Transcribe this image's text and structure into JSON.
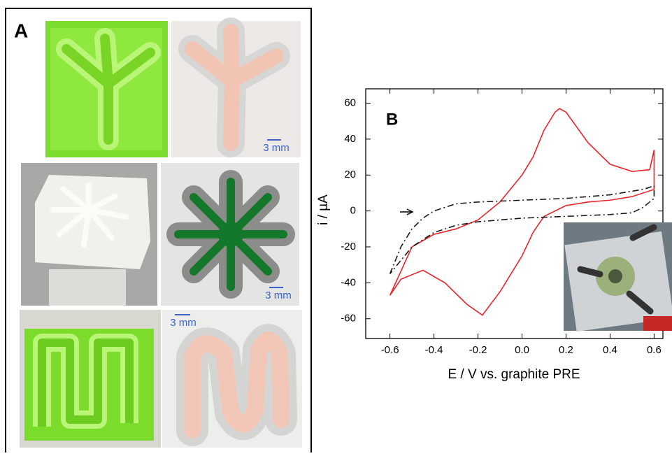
{
  "panel_a": {
    "label": "A",
    "scale_bars": [
      "3 mm",
      "3 mm",
      "3 mm"
    ]
  },
  "chart_data": {
    "type": "line",
    "title": "B",
    "xlabel": "E / V vs. graphite PRE",
    "ylabel": "i / µA",
    "xlim": [
      -0.71,
      0.64
    ],
    "ylim": [
      -71,
      68
    ],
    "xticks": [
      -0.6,
      -0.4,
      -0.2,
      {
        "value": 0,
        "label": "0.0"
      },
      0.2,
      0.4,
      0.6
    ],
    "yticks": [
      -60,
      -40,
      -20,
      0,
      20,
      40,
      60
    ],
    "series": [
      {
        "color": "#e8262b",
        "line_style": "solid",
        "x": [
          -0.6,
          -0.5,
          -0.4,
          -0.3,
          -0.2,
          -0.1,
          0,
          0.05,
          0.1,
          0.15,
          0.17,
          0.2,
          0.3,
          0.4,
          0.5,
          0.58,
          0.6,
          0.6,
          0.5,
          0.4,
          0.3,
          0.2,
          0.1,
          0.05,
          0,
          -0.1,
          -0.18,
          -0.25,
          -0.35,
          -0.45,
          -0.55,
          -0.6
        ],
        "values": [
          -47,
          -20,
          -13,
          -10,
          -5,
          5,
          20,
          30,
          45,
          55,
          57,
          55,
          38,
          26,
          22,
          23,
          34,
          12,
          8,
          6,
          5,
          3,
          -3,
          -12,
          -25,
          -45,
          -58,
          -52,
          -40,
          -33,
          -38,
          -47
        ]
      },
      {
        "color": "#1a1a1a",
        "line_style": "dash-dot",
        "x": [
          -0.6,
          -0.55,
          -0.5,
          -0.45,
          -0.4,
          -0.3,
          -0.2,
          0,
          0.2,
          0.4,
          0.55,
          0.6,
          0.6,
          0.55,
          0.5,
          0.4,
          0.2,
          0,
          -0.2,
          -0.3,
          -0.4,
          -0.5,
          -0.6
        ],
        "values": [
          -35,
          -20,
          -10,
          -4,
          0,
          4,
          5,
          6,
          7,
          9,
          12,
          14,
          7,
          2,
          -1,
          -2,
          -3,
          -4,
          -6,
          -8,
          -12,
          -20,
          -35
        ]
      }
    ]
  }
}
